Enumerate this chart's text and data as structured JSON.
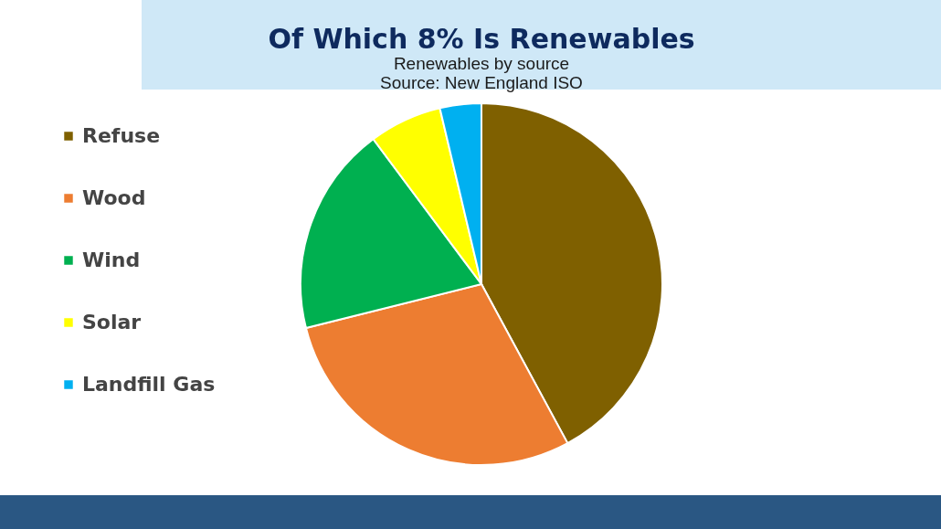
{
  "chart_data": {
    "type": "pie",
    "title": "Of Which 8% Is Renewables",
    "subtitle": "Renewables by source",
    "annotations": [
      "Source: New England ISO"
    ],
    "categories": [
      "Refuse",
      "Wood",
      "Wind",
      "Solar",
      "Landfill Gas"
    ],
    "values": [
      42.1,
      29.0,
      18.7,
      6.5,
      3.7
    ],
    "colors": [
      "#7f6000",
      "#ed7d31",
      "#00b050",
      "#ffff00",
      "#00b0f0"
    ],
    "legend": "left"
  }
}
